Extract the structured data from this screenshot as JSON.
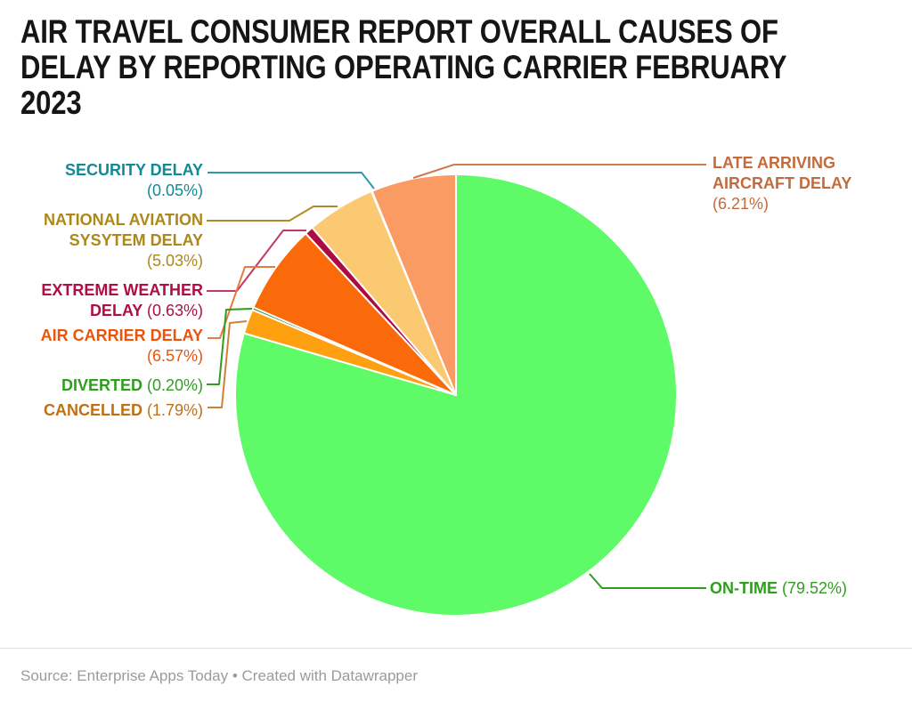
{
  "title_lines": [
    "AIR TRAVEL CONSUMER REPORT OVERALL CAUSES OF",
    "DELAY BY REPORTING OPERATING CARRIER FEBRUARY",
    "2023"
  ],
  "source_line": "Source: Enterprise Apps Today • Created with Datawrapper",
  "chart_data": {
    "type": "pie",
    "title": "AIR TRAVEL CONSUMER REPORT OVERALL CAUSES OF DELAY BY REPORTING OPERATING CARRIER FEBRUARY 2023",
    "unit": "percent",
    "start_angle_deg": 0,
    "direction": "clockwise",
    "slice_border_color": "#ffffff",
    "legend_position": "callout-labels",
    "slices": [
      {
        "id": "on_time",
        "label": "ON-TIME",
        "value": 79.52,
        "display": "ON-TIME (79.52%)",
        "color": "#5efa68",
        "label_color": "#2f9e1f"
      },
      {
        "id": "cancelled",
        "label": "CANCELLED",
        "value": 1.79,
        "display": "CANCELLED (1.79%)",
        "color": "#ffa011",
        "label_color": "#bf6f16"
      },
      {
        "id": "diverted",
        "label": "DIVERTED",
        "value": 0.2,
        "display": "DIVERTED (0.20%)",
        "color": "#18811c",
        "label_color": "#2f9e1f"
      },
      {
        "id": "air_carrier",
        "label": "AIR CARRIER DELAY",
        "value": 6.57,
        "display": "AIR CARRIER DELAY (6.57%)",
        "color": "#fa6a0a",
        "label_color": "#e8560e"
      },
      {
        "id": "extreme_weather",
        "label": "EXTREME WEATHER DELAY",
        "value": 0.63,
        "display": "EXTREME WEATHER DELAY (0.63%)",
        "color": "#ad0a42",
        "label_color": "#b00d47"
      },
      {
        "id": "national_aviation",
        "label": "NATIONAL AVIATION SYSYTEM DELAY",
        "value": 5.03,
        "display": "NATIONAL AVIATION SYSYTEM DELAY (5.03%)",
        "color": "#fcc973",
        "label_color": "#ad871a"
      },
      {
        "id": "security",
        "label": "SECURITY DELAY",
        "value": 0.05,
        "display": "SECURITY DELAY (0.05%)",
        "color": "#128a94",
        "label_color": "#128a94"
      },
      {
        "id": "late_arriving",
        "label": "LATE ARRIVING AIRCRAFT DELAY",
        "value": 6.21,
        "display": "LATE ARRIVING AIRCRAFT DELAY (6.21%)",
        "color": "#fa9b63",
        "label_color": "#c46a3c"
      }
    ]
  },
  "callouts": [
    {
      "id": "security",
      "color": "#128a94",
      "line_color": "#2f9aa6",
      "lines": [
        [
          {
            "t": "SECURITY DELAY",
            "b": true
          }
        ],
        [
          {
            "t": "(0.05%)",
            "b": false
          }
        ]
      ]
    },
    {
      "id": "national_aviation",
      "color": "#ad871a",
      "line_color": "#b08d2a",
      "lines": [
        [
          {
            "t": "NATIONAL AVIATION",
            "b": true
          }
        ],
        [
          {
            "t": "SYSYTEM DELAY",
            "b": true
          }
        ],
        [
          {
            "t": "(5.03%)",
            "b": false
          }
        ]
      ]
    },
    {
      "id": "extreme_weather",
      "color": "#b00d47",
      "line_color": "#c23a66",
      "lines": [
        [
          {
            "t": "EXTREME WEATHER",
            "b": true
          }
        ],
        [
          {
            "t": "DELAY ",
            "b": true
          },
          {
            "t": "(0.63%)",
            "b": false
          }
        ]
      ]
    },
    {
      "id": "air_carrier",
      "color": "#e8560e",
      "line_color": "#e87a40",
      "lines": [
        [
          {
            "t": "AIR CARRIER DELAY",
            "b": true
          }
        ],
        [
          {
            "t": "(6.57%)",
            "b": false
          }
        ]
      ]
    },
    {
      "id": "diverted",
      "color": "#2f9e1f",
      "line_color": "#2f9e1f",
      "lines": [
        [
          {
            "t": "DIVERTED ",
            "b": true
          },
          {
            "t": "(0.20%)",
            "b": false
          }
        ]
      ]
    },
    {
      "id": "cancelled",
      "color": "#bf6f16",
      "line_color": "#ce8034",
      "lines": [
        [
          {
            "t": "CANCELLED ",
            "b": true
          },
          {
            "t": "(1.79%)",
            "b": false
          }
        ]
      ]
    },
    {
      "id": "late_arriving",
      "color": "#c46a3c",
      "line_color": "#cc7a4e",
      "lines": [
        [
          {
            "t": "LATE ARRIVING",
            "b": true
          }
        ],
        [
          {
            "t": "AIRCRAFT DELAY",
            "b": true
          }
        ],
        [
          {
            "t": "(6.21%)",
            "b": false
          }
        ]
      ]
    },
    {
      "id": "on_time",
      "color": "#2f9e1f",
      "line_color": "#2f9e1f",
      "lines": [
        [
          {
            "t": "ON-TIME ",
            "b": true
          },
          {
            "t": "(79.52%)",
            "b": false
          }
        ]
      ]
    }
  ]
}
